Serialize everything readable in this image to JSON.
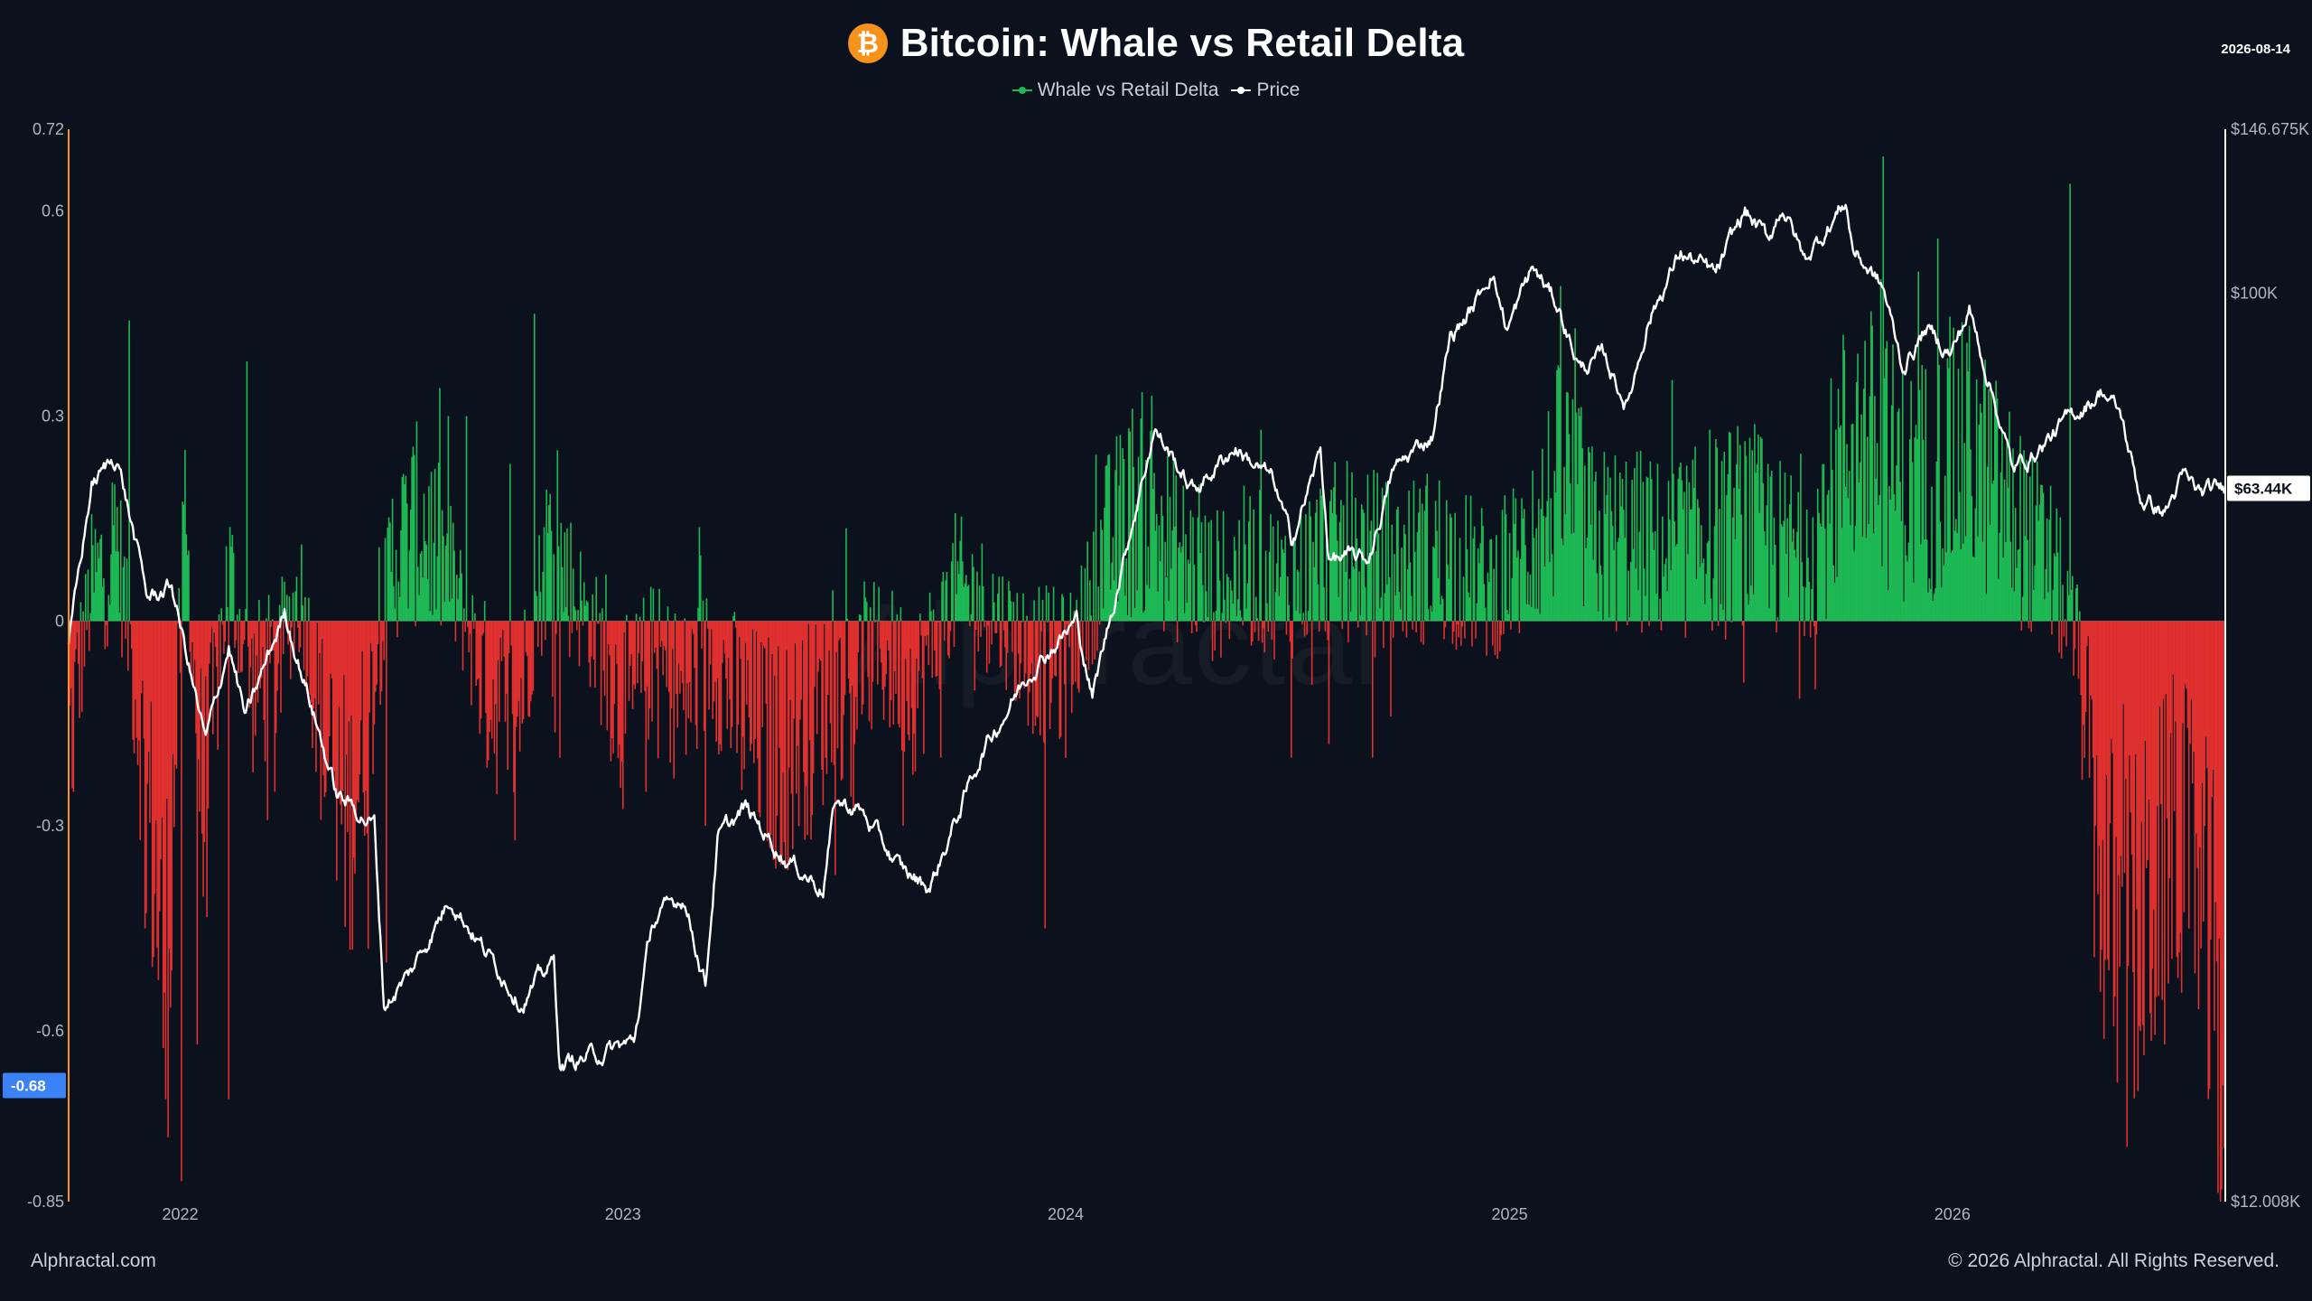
{
  "header": {
    "title": "Bitcoin: Whale vs Retail Delta",
    "logo_icon": "bitcoin-icon",
    "date": "2026-08-14"
  },
  "legend": {
    "items": [
      {
        "label": "Whale vs Retail Delta",
        "color": "#1db954"
      },
      {
        "label": "Price",
        "color": "#ffffff"
      }
    ]
  },
  "footer": {
    "left": "Alphractal.com",
    "right": "© 2026 Alphractal. All Rights Reserved."
  },
  "watermark": "Alphractal",
  "colors": {
    "background": "#0c121d",
    "positive": "#1db954",
    "negative": "#e0302f",
    "price": "#ffffff",
    "left_axis_line": "#f7931a",
    "current_delta_badge": "#3b82f6"
  },
  "chart_data": {
    "type": "bar",
    "left_axis": {
      "ylim": [
        -0.85,
        0.72
      ],
      "ticks": [
        0.72,
        0.6,
        0.3,
        0,
        -0.3,
        -0.6,
        -0.85
      ],
      "tick_labels": [
        "0.72",
        "0.6",
        "0.3",
        "0",
        "-0.3",
        "-0.6",
        "-0.85"
      ],
      "current_value_label": "-0.68"
    },
    "right_axis": {
      "scale": "log",
      "ylim": [
        12008,
        146675
      ],
      "ticks": [
        146675,
        100000,
        12008
      ],
      "tick_labels": [
        "$146.675K",
        "$100K",
        "$12.008K"
      ],
      "current_value_label": "$63.44K"
    },
    "x_axis": {
      "range": [
        "2021-10-01",
        "2026-08-14"
      ],
      "tick_dates": [
        "2022-01-01",
        "2023-01-01",
        "2024-01-01",
        "2025-01-01",
        "2026-01-01"
      ],
      "tick_labels": [
        "2022",
        "2023",
        "2024",
        "2025",
        "2026"
      ]
    },
    "grid": false,
    "legend_position": "top-center",
    "series": [
      {
        "name": "Whale vs Retail Delta",
        "type": "bar",
        "positive_color": "#1db954",
        "negative_color": "#e0302f",
        "anchors": [
          [
            "2021-10-01",
            -0.18
          ],
          [
            "2021-10-20",
            0.05
          ],
          [
            "2021-11-10",
            0.12
          ],
          [
            "2021-12-05",
            -0.25
          ],
          [
            "2021-12-20",
            -0.55
          ],
          [
            "2022-01-05",
            0.15
          ],
          [
            "2022-01-20",
            -0.3
          ],
          [
            "2022-02-10",
            0.08
          ],
          [
            "2022-03-01",
            -0.1
          ],
          [
            "2022-03-20",
            -0.08
          ],
          [
            "2022-04-10",
            0.05
          ],
          [
            "2022-05-01",
            -0.2
          ],
          [
            "2022-05-20",
            -0.3
          ],
          [
            "2022-06-05",
            -0.15
          ],
          [
            "2022-06-25",
            0.1
          ],
          [
            "2022-07-20",
            0.15
          ],
          [
            "2022-08-15",
            0.05
          ],
          [
            "2022-09-10",
            -0.1
          ],
          [
            "2022-10-05",
            -0.15
          ],
          [
            "2022-11-01",
            0.12
          ],
          [
            "2022-11-20",
            0.05
          ],
          [
            "2022-12-15",
            -0.05
          ],
          [
            "2023-01-05",
            -0.15
          ],
          [
            "2023-01-25",
            -0.05
          ],
          [
            "2023-02-20",
            -0.12
          ],
          [
            "2023-03-15",
            -0.05
          ],
          [
            "2023-04-10",
            -0.15
          ],
          [
            "2023-05-10",
            -0.2
          ],
          [
            "2023-06-05",
            -0.15
          ],
          [
            "2023-07-01",
            -0.1
          ],
          [
            "2023-08-01",
            -0.05
          ],
          [
            "2023-09-01",
            -0.1
          ],
          [
            "2023-10-01",
            0.05
          ],
          [
            "2023-11-01",
            0.02
          ],
          [
            "2023-12-01",
            -0.05
          ],
          [
            "2024-01-01",
            -0.08
          ],
          [
            "2024-02-01",
            0.1
          ],
          [
            "2024-03-01",
            0.18
          ],
          [
            "2024-04-01",
            0.1
          ],
          [
            "2024-05-01",
            0.05
          ],
          [
            "2024-06-01",
            0.08
          ],
          [
            "2024-07-01",
            0.05
          ],
          [
            "2024-08-01",
            0.1
          ],
          [
            "2024-09-01",
            0.1
          ],
          [
            "2024-10-01",
            0.08
          ],
          [
            "2024-11-01",
            0.1
          ],
          [
            "2024-11-20",
            0.08
          ],
          [
            "2024-12-15",
            0.05
          ],
          [
            "2025-01-15",
            0.1
          ],
          [
            "2025-02-15",
            0.22
          ],
          [
            "2025-03-10",
            0.12
          ],
          [
            "2025-04-10",
            0.12
          ],
          [
            "2025-05-10",
            0.1
          ],
          [
            "2025-06-10",
            0.12
          ],
          [
            "2025-07-15",
            0.15
          ],
          [
            "2025-08-15",
            0.1
          ],
          [
            "2025-09-10",
            0.12
          ],
          [
            "2025-10-10",
            0.28
          ],
          [
            "2025-11-01",
            0.25
          ],
          [
            "2025-11-25",
            0.2
          ],
          [
            "2025-12-20",
            0.22
          ],
          [
            "2026-01-15",
            0.25
          ],
          [
            "2026-02-10",
            0.18
          ],
          [
            "2026-03-05",
            0.12
          ],
          [
            "2026-03-25",
            0.08
          ],
          [
            "2026-04-15",
            -0.05
          ],
          [
            "2026-05-01",
            -0.35
          ],
          [
            "2026-05-20",
            -0.5
          ],
          [
            "2026-06-10",
            -0.45
          ],
          [
            "2026-07-01",
            -0.3
          ],
          [
            "2026-07-20",
            -0.35
          ],
          [
            "2026-08-14",
            -0.68
          ]
        ],
        "spikes": [
          [
            "2021-10-05",
            -0.25
          ],
          [
            "2021-11-08",
            0.2
          ],
          [
            "2021-11-20",
            0.44
          ],
          [
            "2021-12-03",
            -0.45
          ],
          [
            "2021-12-20",
            -0.7
          ],
          [
            "2022-01-02",
            -0.82
          ],
          [
            "2022-01-15",
            -0.62
          ],
          [
            "2022-02-10",
            -0.7
          ],
          [
            "2022-02-25",
            0.38
          ],
          [
            "2022-03-20",
            -0.25
          ],
          [
            "2022-05-10",
            -0.38
          ],
          [
            "2022-06-05",
            -0.48
          ],
          [
            "2022-06-20",
            -0.5
          ],
          [
            "2022-07-05",
            0.2
          ],
          [
            "2022-08-10",
            0.3
          ],
          [
            "2022-08-25",
            0.3
          ],
          [
            "2022-09-30",
            0.23
          ],
          [
            "2022-10-20",
            0.45
          ],
          [
            "2022-11-08",
            0.25
          ],
          [
            "2022-11-10",
            -0.2
          ],
          [
            "2023-01-20",
            -0.25
          ],
          [
            "2023-03-10",
            -0.3
          ],
          [
            "2023-05-05",
            -0.35
          ],
          [
            "2023-06-05",
            -0.32
          ],
          [
            "2023-07-10",
            -0.28
          ],
          [
            "2023-08-20",
            -0.3
          ],
          [
            "2023-09-20",
            -0.2
          ],
          [
            "2023-12-15",
            -0.45
          ],
          [
            "2024-03-12",
            0.33
          ],
          [
            "2024-04-20",
            0.2
          ],
          [
            "2024-06-10",
            0.28
          ],
          [
            "2024-07-05",
            -0.2
          ],
          [
            "2024-08-05",
            -0.18
          ],
          [
            "2024-09-10",
            -0.2
          ],
          [
            "2024-12-20",
            -0.05
          ],
          [
            "2025-01-20",
            0.22
          ],
          [
            "2025-02-28",
            0.3
          ],
          [
            "2025-06-15",
            0.28
          ],
          [
            "2025-07-20",
            0.25
          ],
          [
            "2025-08-05",
            0.22
          ],
          [
            "2025-09-10",
            -0.1
          ],
          [
            "2025-10-20",
            0.34
          ],
          [
            "2025-11-05",
            0.68
          ],
          [
            "2025-12-20",
            0.56
          ],
          [
            "2026-03-01",
            0.25
          ],
          [
            "2026-04-08",
            0.64
          ],
          [
            "2026-04-20",
            -0.2
          ],
          [
            "2026-05-01",
            -0.4
          ],
          [
            "2026-05-15",
            -0.55
          ],
          [
            "2026-06-05",
            -0.6
          ],
          [
            "2026-06-25",
            -0.62
          ],
          [
            "2026-07-15",
            -0.45
          ],
          [
            "2026-08-05",
            -0.6
          ],
          [
            "2026-08-12",
            -0.68
          ]
        ]
      },
      {
        "name": "Price",
        "type": "line",
        "color": "#ffffff",
        "points": [
          [
            "2021-10-01",
            44000
          ],
          [
            "2021-10-20",
            64000
          ],
          [
            "2021-11-10",
            68500
          ],
          [
            "2021-12-05",
            49000
          ],
          [
            "2021-12-25",
            50500
          ],
          [
            "2022-01-22",
            35000
          ],
          [
            "2022-02-10",
            44000
          ],
          [
            "2022-02-24",
            37000
          ],
          [
            "2022-03-28",
            47500
          ],
          [
            "2022-04-15",
            40000
          ],
          [
            "2022-05-10",
            31000
          ],
          [
            "2022-06-10",
            29000
          ],
          [
            "2022-06-18",
            19000
          ],
          [
            "2022-07-10",
            20500
          ],
          [
            "2022-08-12",
            24500
          ],
          [
            "2022-09-10",
            21500
          ],
          [
            "2022-10-10",
            19200
          ],
          [
            "2022-11-05",
            21000
          ],
          [
            "2022-11-10",
            16500
          ],
          [
            "2022-12-15",
            17000
          ],
          [
            "2023-01-10",
            17400
          ],
          [
            "2023-01-25",
            23000
          ],
          [
            "2023-02-20",
            24500
          ],
          [
            "2023-03-10",
            20000
          ],
          [
            "2023-03-20",
            28000
          ],
          [
            "2023-04-12",
            30000
          ],
          [
            "2023-05-15",
            26800
          ],
          [
            "2023-06-15",
            25000
          ],
          [
            "2023-06-25",
            30500
          ],
          [
            "2023-07-15",
            30000
          ],
          [
            "2023-08-18",
            26000
          ],
          [
            "2023-09-11",
            25000
          ],
          [
            "2023-10-25",
            34500
          ],
          [
            "2023-12-05",
            42000
          ],
          [
            "2024-01-10",
            46500
          ],
          [
            "2024-01-23",
            39000
          ],
          [
            "2024-02-15",
            52000
          ],
          [
            "2024-03-14",
            73000
          ],
          [
            "2024-04-15",
            63000
          ],
          [
            "2024-05-20",
            70000
          ],
          [
            "2024-06-20",
            64500
          ],
          [
            "2024-07-05",
            56000
          ],
          [
            "2024-07-29",
            69000
          ],
          [
            "2024-08-05",
            54000
          ],
          [
            "2024-09-06",
            53500
          ],
          [
            "2024-09-27",
            66000
          ],
          [
            "2024-10-29",
            72000
          ],
          [
            "2024-11-13",
            90000
          ],
          [
            "2024-12-05",
            98000
          ],
          [
            "2024-12-17",
            106000
          ],
          [
            "2024-12-30",
            92000
          ],
          [
            "2025-01-20",
            106000
          ],
          [
            "2025-02-10",
            97000
          ],
          [
            "2025-02-28",
            84000
          ],
          [
            "2025-03-20",
            86000
          ],
          [
            "2025-04-08",
            77000
          ],
          [
            "2025-04-25",
            94000
          ],
          [
            "2025-05-22",
            110000
          ],
          [
            "2025-06-20",
            104000
          ],
          [
            "2025-07-14",
            121000
          ],
          [
            "2025-08-02",
            113000
          ],
          [
            "2025-08-14",
            123000
          ],
          [
            "2025-09-01",
            108000
          ],
          [
            "2025-10-05",
            124000
          ],
          [
            "2025-10-11",
            111000
          ],
          [
            "2025-11-05",
            101000
          ],
          [
            "2025-11-21",
            84000
          ],
          [
            "2025-12-10",
            92000
          ],
          [
            "2025-12-31",
            87000
          ],
          [
            "2026-01-15",
            96000
          ],
          [
            "2026-02-05",
            78000
          ],
          [
            "2026-02-20",
            66000
          ],
          [
            "2026-03-15",
            70000
          ],
          [
            "2026-04-10",
            75000
          ],
          [
            "2026-05-05",
            80000
          ],
          [
            "2026-05-20",
            75000
          ],
          [
            "2026-06-05",
            62000
          ],
          [
            "2026-06-25",
            60000
          ],
          [
            "2026-07-10",
            65000
          ],
          [
            "2026-07-25",
            62500
          ],
          [
            "2026-08-14",
            63440
          ]
        ]
      }
    ]
  }
}
